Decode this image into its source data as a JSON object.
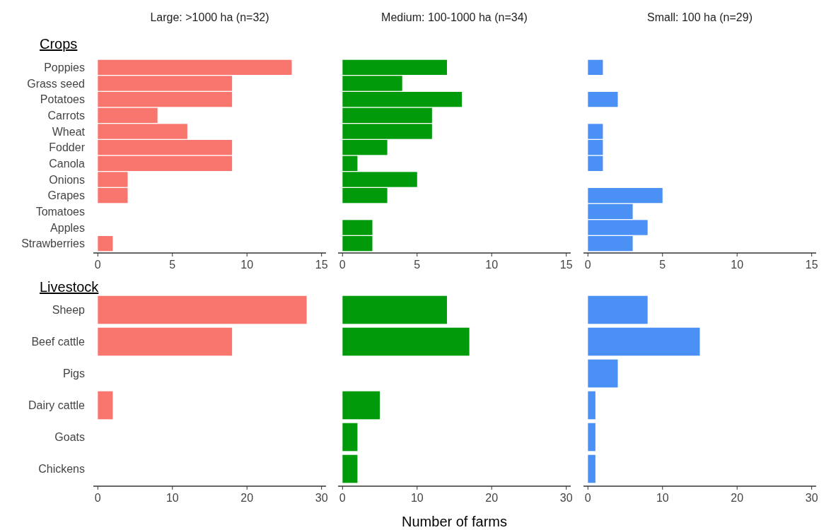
{
  "chart_data": [
    {
      "type": "bar",
      "orientation": "horizontal",
      "title": "Large: >1000 ha (n=32)",
      "ylabel": "Crops",
      "categories": [
        "Poppies",
        "Grass seed",
        "Potatoes",
        "Carrots",
        "Wheat",
        "Fodder",
        "Canola",
        "Onions",
        "Grapes",
        "Tomatoes",
        "Apples",
        "Strawberries"
      ],
      "values": [
        13,
        9,
        9,
        4,
        6,
        9,
        9,
        2,
        2,
        null,
        null,
        1
      ],
      "color": "#f8766d",
      "xlim": [
        -0.3,
        15.3
      ],
      "xticks": [
        0,
        5,
        10,
        15
      ]
    },
    {
      "type": "bar",
      "orientation": "horizontal",
      "title": "Medium: 100-1000 ha (n=34)",
      "categories": [
        null,
        null,
        null,
        null,
        null,
        null,
        null,
        null,
        null,
        null,
        null,
        null
      ],
      "values": [
        7,
        4,
        8,
        6,
        6,
        3,
        1,
        5,
        3,
        null,
        2,
        2
      ],
      "color": "#009a0a",
      "xlim": [
        -0.3,
        15.3
      ],
      "xticks": [
        0,
        5,
        10,
        15
      ],
      "tick_labels": "x"
    },
    {
      "type": "bar",
      "orientation": "horizontal",
      "title": "Small: 100 ha (n=29)",
      "categories": [
        null,
        null,
        null,
        null,
        null,
        null,
        null,
        null,
        null,
        null,
        null,
        null
      ],
      "values": [
        1,
        null,
        2,
        null,
        1,
        1,
        1,
        null,
        5,
        3,
        4,
        3
      ],
      "color": "#4a90f5",
      "xlim": [
        -0.3,
        15.3
      ],
      "xticks": [
        0,
        5,
        10,
        15
      ],
      "tick_labels": "x"
    },
    {
      "type": "bar",
      "orientation": "horizontal",
      "ylabel": "Livestock",
      "categories": [
        "Sheep",
        "Beef cattle",
        "Pigs",
        "Dairy cattle",
        "Goats",
        "Chickens"
      ],
      "values": [
        28,
        18,
        null,
        2,
        null,
        null
      ],
      "color": "#f8766d",
      "xlim": [
        -0.6,
        30.6
      ],
      "xticks": [
        0,
        10,
        20,
        30
      ]
    },
    {
      "type": "bar",
      "orientation": "horizontal",
      "xlabel": "Number of farms",
      "categories": [
        null,
        null,
        null,
        null,
        null,
        null
      ],
      "values": [
        14,
        17,
        null,
        5,
        2,
        2
      ],
      "color": "#009a0a",
      "xlim": [
        -0.6,
        30.6
      ],
      "xticks": [
        0,
        10,
        20,
        30
      ],
      "tick_labels": "x"
    },
    {
      "type": "bar",
      "orientation": "horizontal",
      "categories": [
        null,
        null,
        null,
        null,
        null,
        null
      ],
      "values": [
        8,
        15,
        4,
        1,
        1,
        1
      ],
      "color": "#4a90f5",
      "xlim": [
        -0.6,
        30.6
      ],
      "xticks": [
        0,
        10,
        20,
        30
      ],
      "tick_labels": "x"
    }
  ]
}
